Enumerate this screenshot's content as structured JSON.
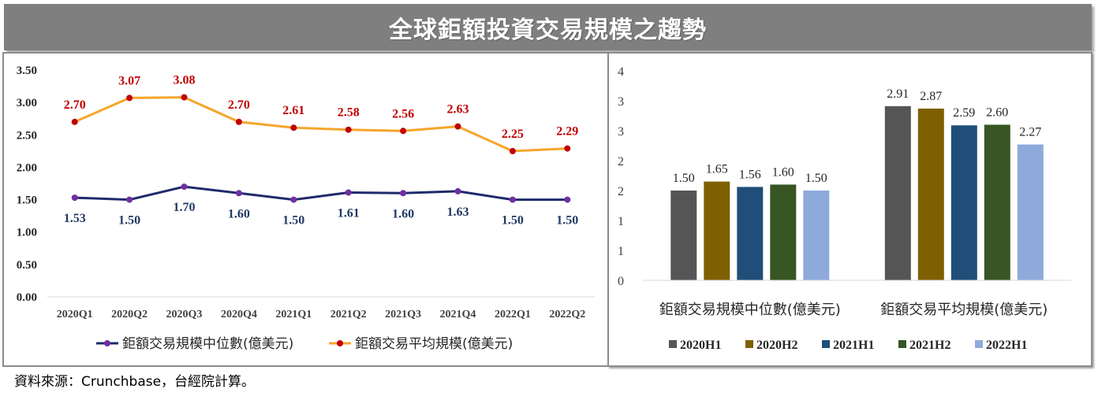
{
  "title": "全球鉅額投資交易規模之趨勢",
  "source": "資料來源：Crunchbase，台經院計算。",
  "colors": {
    "banner": "#7f7f7f"
  },
  "chart_data": [
    {
      "type": "line",
      "categories": [
        "2020Q1",
        "2020Q2",
        "2020Q3",
        "2020Q4",
        "2021Q1",
        "2021Q2",
        "2021Q3",
        "2021Q4",
        "2022Q1",
        "2022Q2"
      ],
      "ylim": [
        0,
        3.5
      ],
      "y_ticks": [
        0,
        0.5,
        1,
        1.5,
        2,
        2.5,
        3,
        3.5
      ],
      "y_tick_labels": [
        "0.00",
        "0.50",
        "1.00",
        "1.50",
        "2.00",
        "2.50",
        "3.00",
        "3.50"
      ],
      "grid": false,
      "legend": "bottom",
      "series": [
        {
          "name": "鉅額交易規模中位數(億美元)",
          "values": [
            1.53,
            1.5,
            1.7,
            1.6,
            1.5,
            1.61,
            1.6,
            1.63,
            1.5,
            1.5
          ],
          "data_labels": [
            "1.53",
            "1.50",
            "1.70",
            "1.60",
            "1.50",
            "1.61",
            "1.60",
            "1.63",
            "1.50",
            "1.50"
          ],
          "label_position": "below",
          "line_color": "#1f2a6b",
          "marker_color": "#7030a0",
          "label_color": "#1f3864"
        },
        {
          "name": "鉅額交易平均規模(億美元)",
          "values": [
            2.7,
            3.07,
            3.08,
            2.7,
            2.61,
            2.58,
            2.56,
            2.63,
            2.25,
            2.29
          ],
          "data_labels": [
            "2.70",
            "3.07",
            "3.08",
            "2.70",
            "2.61",
            "2.58",
            "2.56",
            "2.63",
            "2.25",
            "2.29"
          ],
          "label_position": "above",
          "line_color": "#f5a62b",
          "marker_color": "#c00000",
          "label_color": "#c00000"
        }
      ]
    },
    {
      "type": "bar",
      "categories": [
        "鉅額交易規模中位數(億美元)",
        "鉅額交易平均規模(億美元)"
      ],
      "ylim": [
        0,
        3.5
      ],
      "y_ticks": [
        0,
        0.5,
        1,
        1.5,
        2,
        2.5,
        3,
        3.5
      ],
      "y_tick_labels": [
        "0",
        "1",
        "1",
        "2",
        "2",
        "3",
        "3",
        "4"
      ],
      "grid": false,
      "legend": "bottom",
      "series": [
        {
          "name": "2020H1",
          "values": [
            1.5,
            2.91
          ],
          "data_labels": [
            "1.50",
            "2.91"
          ],
          "color": "#555555"
        },
        {
          "name": "2020H2",
          "values": [
            1.65,
            2.87
          ],
          "data_labels": [
            "1.65",
            "2.87"
          ],
          "color": "#7f6000"
        },
        {
          "name": "2021H1",
          "values": [
            1.56,
            2.59
          ],
          "data_labels": [
            "1.56",
            "2.59"
          ],
          "color": "#1f4e79"
        },
        {
          "name": "2021H2",
          "values": [
            1.6,
            2.6
          ],
          "data_labels": [
            "1.60",
            "2.60"
          ],
          "color": "#375623"
        },
        {
          "name": "2022H1",
          "values": [
            1.5,
            2.27
          ],
          "data_labels": [
            "1.50",
            "2.27"
          ],
          "color": "#8eaadb"
        }
      ]
    }
  ]
}
